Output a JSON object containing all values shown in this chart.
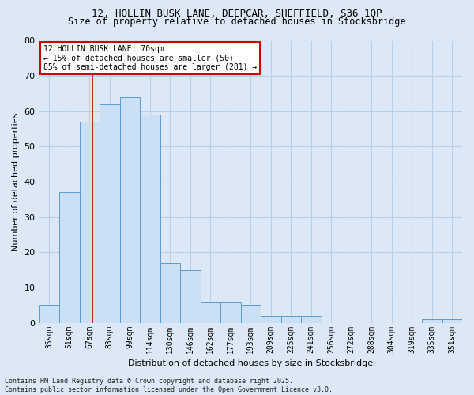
{
  "title_line1": "12, HOLLIN BUSK LANE, DEEPCAR, SHEFFIELD, S36 1QP",
  "title_line2": "Size of property relative to detached houses in Stocksbridge",
  "xlabel": "Distribution of detached houses by size in Stocksbridge",
  "ylabel": "Number of detached properties",
  "categories": [
    "35sqm",
    "51sqm",
    "67sqm",
    "83sqm",
    "99sqm",
    "114sqm",
    "130sqm",
    "146sqm",
    "162sqm",
    "177sqm",
    "193sqm",
    "209sqm",
    "225sqm",
    "241sqm",
    "256sqm",
    "272sqm",
    "288sqm",
    "304sqm",
    "319sqm",
    "335sqm",
    "351sqm"
  ],
  "values": [
    5,
    37,
    57,
    62,
    64,
    59,
    17,
    15,
    6,
    6,
    5,
    2,
    2,
    2,
    0,
    0,
    0,
    0,
    0,
    1,
    1
  ],
  "bar_color": "#cce0f5",
  "bar_edge_color": "#5b9bd5",
  "grid_color": "#b8cfe8",
  "vline_color": "#cc0000",
  "vline_x_index": 2.15,
  "annotation_line1": "12 HOLLIN BUSK LANE: 70sqm",
  "annotation_line2": "← 15% of detached houses are smaller (50)",
  "annotation_line3": "85% of semi-detached houses are larger (281) →",
  "annotation_box_color": "#ffffff",
  "annotation_box_edge": "#cc0000",
  "ylim": [
    0,
    80
  ],
  "yticks": [
    0,
    10,
    20,
    30,
    40,
    50,
    60,
    70,
    80
  ],
  "footer_line1": "Contains HM Land Registry data © Crown copyright and database right 2025.",
  "footer_line2": "Contains public sector information licensed under the Open Government Licence v3.0.",
  "bg_color": "#dce8f5",
  "plot_bg_color": "#dce8f5",
  "title_fontsize": 9,
  "subtitle_fontsize": 8.5,
  "ylabel_fontsize": 8,
  "xlabel_fontsize": 8,
  "tick_fontsize": 7,
  "annotation_fontsize": 7,
  "footer_fontsize": 6
}
